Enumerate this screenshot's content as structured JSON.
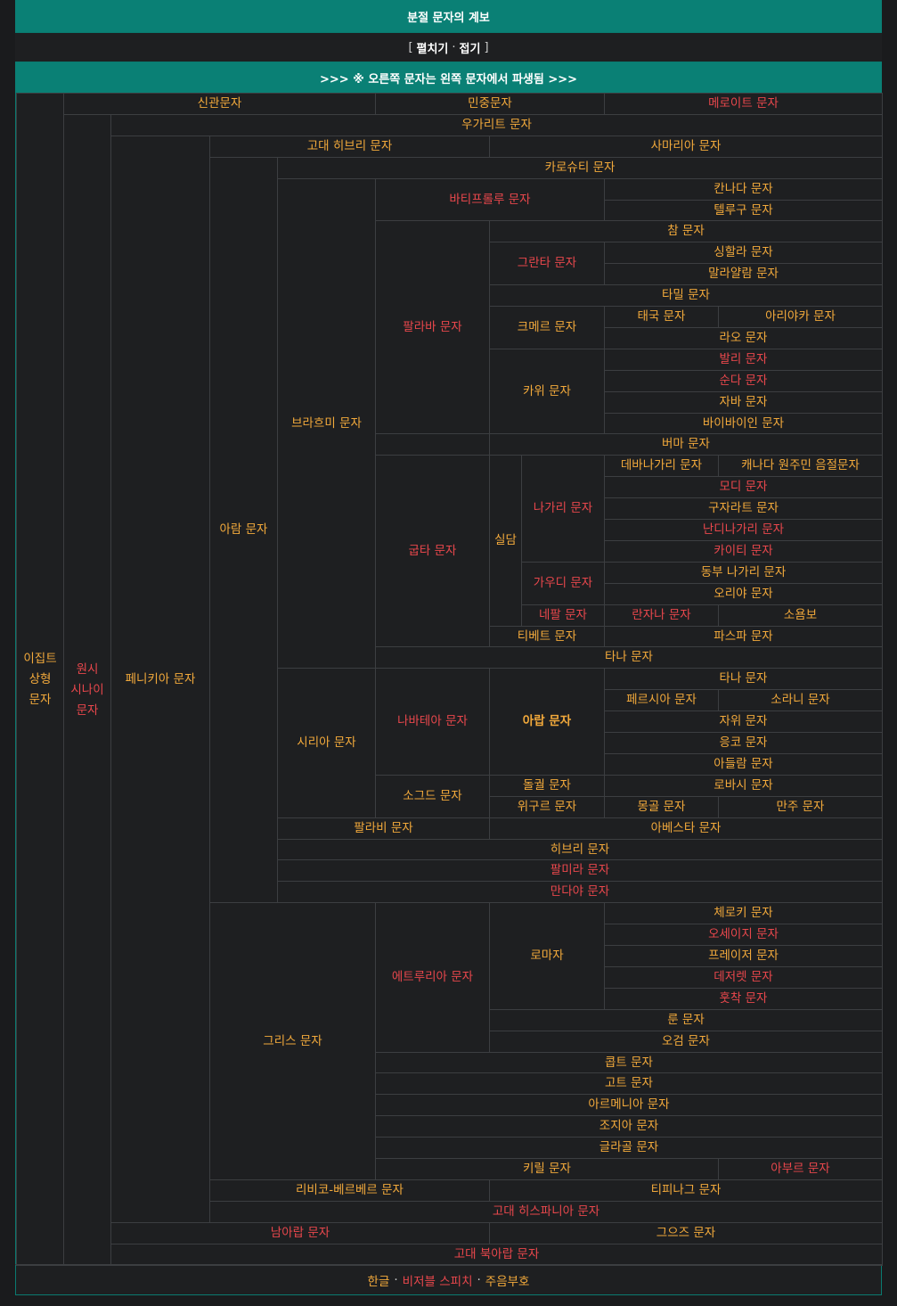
{
  "header": {
    "title": "분절 문자의 계보",
    "toggle_open_bracket": "[",
    "toggle_expand": "펼치기",
    "toggle_dot": "·",
    "toggle_collapse": "접기",
    "toggle_close_bracket": "]",
    "note": ">>> ※ 오른쪽 문자는 왼쪽 문자에서 파생됨 >>>"
  },
  "colors": {
    "header_bg": "#0a8075",
    "link_orange": "#f2a93b",
    "link_red": "#e8474c",
    "cell_bg": "#1e1f21",
    "grid_line": "#3c3e41"
  },
  "cells": [
    {
      "id": "egyptian-hieroglyphs",
      "label": "이집트\n상형\n문자",
      "color": "orange"
    },
    {
      "id": "proto-sinaitic",
      "label": "원시\n시나이\n문자",
      "color": "red"
    },
    {
      "id": "hieratic",
      "label": "신관문자",
      "color": "orange"
    },
    {
      "id": "demotic",
      "label": "민중문자",
      "color": "orange"
    },
    {
      "id": "meroitic",
      "label": "메로이트 문자",
      "color": "red"
    },
    {
      "id": "ugaritic",
      "label": "우가리트 문자",
      "color": "orange"
    },
    {
      "id": "phoenician",
      "label": "페니키아 문자",
      "color": "orange"
    },
    {
      "id": "paleo-hebrew",
      "label": "고대 히브리 문자",
      "color": "orange"
    },
    {
      "id": "samaritan",
      "label": "사마리아 문자",
      "color": "orange"
    },
    {
      "id": "aramaic",
      "label": "아람 문자",
      "color": "orange"
    },
    {
      "id": "kharosthi",
      "label": "카로슈티 문자",
      "color": "orange"
    },
    {
      "id": "brahmi",
      "label": "브라흐미 문자",
      "color": "orange"
    },
    {
      "id": "bhattiprolu",
      "label": "바티프롤루 문자",
      "color": "red"
    },
    {
      "id": "kannada",
      "label": "칸나다 문자",
      "color": "orange"
    },
    {
      "id": "telugu",
      "label": "텔루구 문자",
      "color": "orange"
    },
    {
      "id": "pallava",
      "label": "팔라바 문자",
      "color": "red"
    },
    {
      "id": "cham",
      "label": "참 문자",
      "color": "orange"
    },
    {
      "id": "grantha",
      "label": "그란타 문자",
      "color": "red"
    },
    {
      "id": "sinhala",
      "label": "싱할라 문자",
      "color": "orange"
    },
    {
      "id": "malayalam",
      "label": "말라얄람 문자",
      "color": "orange"
    },
    {
      "id": "tamil",
      "label": "타밀 문자",
      "color": "orange"
    },
    {
      "id": "khmer",
      "label": "크메르 문자",
      "color": "orange"
    },
    {
      "id": "thai",
      "label": "태국 문자",
      "color": "orange"
    },
    {
      "id": "ariyaka",
      "label": "아리야카 문자",
      "color": "orange"
    },
    {
      "id": "lao",
      "label": "라오 문자",
      "color": "orange"
    },
    {
      "id": "kawi",
      "label": "카위 문자",
      "color": "orange"
    },
    {
      "id": "balinese",
      "label": "발리 문자",
      "color": "red"
    },
    {
      "id": "sundanese",
      "label": "순다 문자",
      "color": "red"
    },
    {
      "id": "javanese",
      "label": "자바 문자",
      "color": "orange"
    },
    {
      "id": "baybayin",
      "label": "바이바이인 문자",
      "color": "orange"
    },
    {
      "id": "burmese",
      "label": "버마 문자",
      "color": "orange"
    },
    {
      "id": "gupta",
      "label": "굽타 문자",
      "color": "red"
    },
    {
      "id": "siddham",
      "label": "실담",
      "color": "orange"
    },
    {
      "id": "nagari",
      "label": "나가리 문자",
      "color": "red"
    },
    {
      "id": "devanagari",
      "label": "데바나가리 문자",
      "color": "orange"
    },
    {
      "id": "canadian-syllabics",
      "label": "캐나다 원주민 음절문자",
      "color": "orange"
    },
    {
      "id": "modi",
      "label": "모디 문자",
      "color": "red"
    },
    {
      "id": "gujarati",
      "label": "구자라트 문자",
      "color": "orange"
    },
    {
      "id": "nandinagari",
      "label": "난디나가리 문자",
      "color": "red"
    },
    {
      "id": "kaithi",
      "label": "카이티 문자",
      "color": "red"
    },
    {
      "id": "gaudi",
      "label": "가우디 문자",
      "color": "red"
    },
    {
      "id": "eastern-nagari",
      "label": "동부 나가리 문자",
      "color": "orange"
    },
    {
      "id": "odia",
      "label": "오리야 문자",
      "color": "orange"
    },
    {
      "id": "nepal",
      "label": "네팔 문자",
      "color": "red"
    },
    {
      "id": "ranjana",
      "label": "란자나 문자",
      "color": "red"
    },
    {
      "id": "soyombo",
      "label": "소욤보",
      "color": "orange"
    },
    {
      "id": "tibetan",
      "label": "티베트 문자",
      "color": "orange"
    },
    {
      "id": "phags-pa",
      "label": "파스파 문자",
      "color": "orange"
    },
    {
      "id": "thaana-1",
      "label": "타나 문자",
      "color": "orange"
    },
    {
      "id": "syriac",
      "label": "시리아 문자",
      "color": "orange"
    },
    {
      "id": "nabataean",
      "label": "나바테아 문자",
      "color": "red"
    },
    {
      "id": "arabic",
      "label": "아랍 문자",
      "color": "orange",
      "bold": true
    },
    {
      "id": "thaana-2",
      "label": "타나 문자",
      "color": "orange"
    },
    {
      "id": "persian",
      "label": "페르시아 문자",
      "color": "orange"
    },
    {
      "id": "sorani",
      "label": "소라니 문자",
      "color": "orange"
    },
    {
      "id": "jawi",
      "label": "자위 문자",
      "color": "orange"
    },
    {
      "id": "ngko",
      "label": "응코 문자",
      "color": "orange"
    },
    {
      "id": "adlam",
      "label": "아들람 문자",
      "color": "orange"
    },
    {
      "id": "sogdian",
      "label": "소그드 문자",
      "color": "orange"
    },
    {
      "id": "old-turkic",
      "label": "돌궐 문자",
      "color": "orange"
    },
    {
      "id": "orkhon-rovasi",
      "label": "로바시 문자",
      "color": "orange"
    },
    {
      "id": "uyghur",
      "label": "위구르 문자",
      "color": "orange"
    },
    {
      "id": "mongolian",
      "label": "몽골 문자",
      "color": "orange"
    },
    {
      "id": "manchu",
      "label": "만주 문자",
      "color": "orange"
    },
    {
      "id": "pahlavi",
      "label": "팔라비 문자",
      "color": "orange"
    },
    {
      "id": "avestan",
      "label": "아베스타 문자",
      "color": "orange"
    },
    {
      "id": "hebrew",
      "label": "히브리 문자",
      "color": "orange"
    },
    {
      "id": "palmyrene",
      "label": "팔미라 문자",
      "color": "red"
    },
    {
      "id": "mandaic",
      "label": "만다야 문자",
      "color": "red"
    },
    {
      "id": "greek",
      "label": "그리스 문자",
      "color": "orange"
    },
    {
      "id": "etruscan",
      "label": "에트루리아 문자",
      "color": "red"
    },
    {
      "id": "latin",
      "label": "로마자",
      "color": "orange"
    },
    {
      "id": "cherokee",
      "label": "체로키 문자",
      "color": "orange"
    },
    {
      "id": "osage",
      "label": "오세이지 문자",
      "color": "red"
    },
    {
      "id": "fraser",
      "label": "프레이저 문자",
      "color": "orange"
    },
    {
      "id": "deseret",
      "label": "데저렛 문자",
      "color": "red"
    },
    {
      "id": "hotchak",
      "label": "훗착 문자",
      "color": "red"
    },
    {
      "id": "runic",
      "label": "룬 문자",
      "color": "orange"
    },
    {
      "id": "ogham",
      "label": "오검 문자",
      "color": "orange"
    },
    {
      "id": "coptic",
      "label": "콥트 문자",
      "color": "orange"
    },
    {
      "id": "gothic",
      "label": "고트 문자",
      "color": "orange"
    },
    {
      "id": "armenian",
      "label": "아르메니아 문자",
      "color": "orange"
    },
    {
      "id": "georgian",
      "label": "조지아 문자",
      "color": "orange"
    },
    {
      "id": "glagolitic",
      "label": "글라골 문자",
      "color": "orange"
    },
    {
      "id": "cyrillic",
      "label": "키릴 문자",
      "color": "orange"
    },
    {
      "id": "abur",
      "label": "아부르 문자",
      "color": "red"
    },
    {
      "id": "libyco-berber",
      "label": "리비코-베르베르 문자",
      "color": "orange"
    },
    {
      "id": "tifinagh",
      "label": "티피나그 문자",
      "color": "orange"
    },
    {
      "id": "paleohispanic",
      "label": "고대 히스파니아 문자",
      "color": "red"
    },
    {
      "id": "south-arabian",
      "label": "남아랍 문자",
      "color": "red"
    },
    {
      "id": "geez",
      "label": "그으즈 문자",
      "color": "orange"
    },
    {
      "id": "ancient-north-arabian",
      "label": "고대 북아랍 문자",
      "color": "red"
    }
  ],
  "footer": [
    {
      "label": "한글",
      "color": "orange"
    },
    {
      "label": "비저블 스피치",
      "color": "red"
    },
    {
      "label": "주음부호",
      "color": "orange"
    }
  ],
  "footer_sep": "·"
}
